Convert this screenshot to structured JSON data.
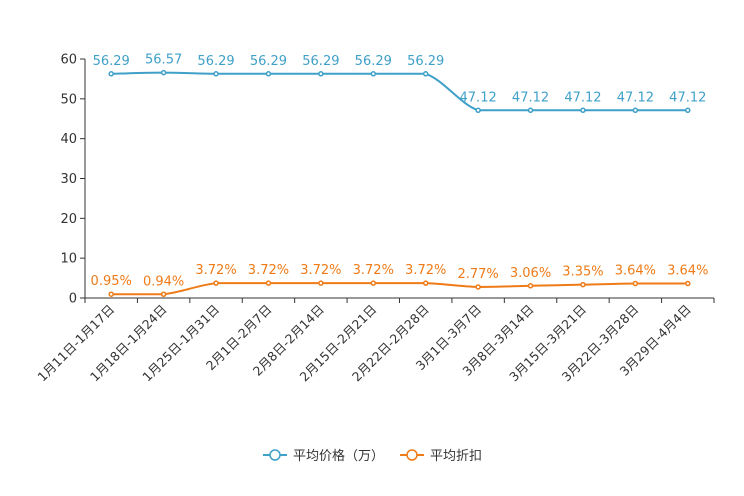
{
  "chart_data": {
    "type": "line",
    "title": "",
    "xlabel": "",
    "ylabel": "",
    "ylim": [
      0,
      60
    ],
    "yticks": [
      0,
      10,
      20,
      30,
      40,
      50,
      60
    ],
    "grid": false,
    "legend_position": "bottom-center",
    "categories": [
      "1月11日-1月17日",
      "1月18日-1月24日",
      "1月25日-1月31日",
      "2月1日-2月7日",
      "2月8日-2月14日",
      "2月15日-2月21日",
      "2月22日-2月28日",
      "3月1日-3月7日",
      "3月8日-3月14日",
      "3月15日-3月21日",
      "3月22日-3月28日",
      "3月29日-4月4日"
    ],
    "series": [
      {
        "name": "平均价格（万）",
        "color": "#3fa0c8",
        "values": [
          56.29,
          56.57,
          56.29,
          56.29,
          56.29,
          56.29,
          56.29,
          47.12,
          47.12,
          47.12,
          47.12,
          47.12
        ],
        "labels": [
          "56.29",
          "56.57",
          "56.29",
          "56.29",
          "56.29",
          "56.29",
          "56.29",
          "47.12",
          "47.12",
          "47.12",
          "47.12",
          "47.12"
        ]
      },
      {
        "name": "平均折扣",
        "color": "#ef7b18",
        "values": [
          0.95,
          0.94,
          3.72,
          3.72,
          3.72,
          3.72,
          3.72,
          2.77,
          3.06,
          3.35,
          3.64,
          3.64
        ],
        "labels": [
          "0.95%",
          "0.94%",
          "3.72%",
          "3.72%",
          "3.72%",
          "3.72%",
          "3.72%",
          "2.77%",
          "3.06%",
          "3.35%",
          "3.64%",
          "3.64%"
        ]
      }
    ]
  }
}
